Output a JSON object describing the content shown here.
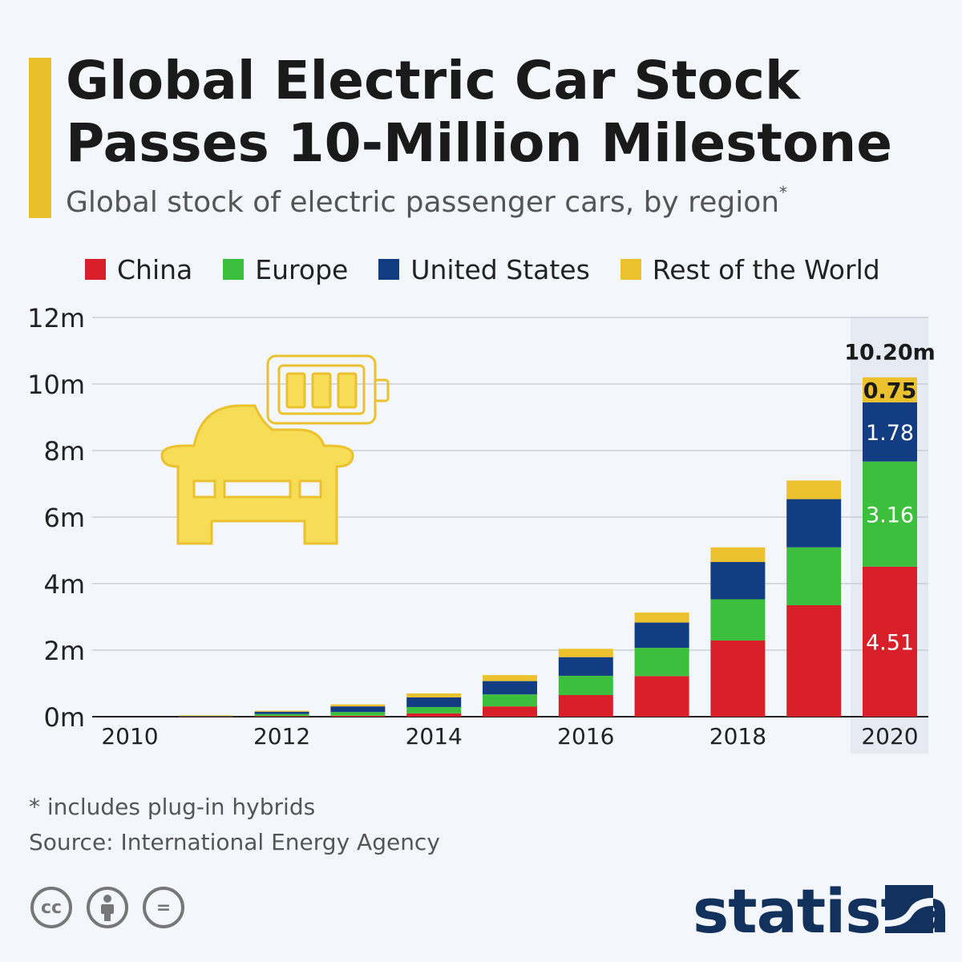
{
  "title": {
    "line1": "Global Electric Car Stock",
    "line2": "Passes 10-Million Milestone"
  },
  "subtitle": "Global stock of electric passenger cars, by region",
  "subtitle_marker": "*",
  "footnote": "* includes plug-in hybrids",
  "source": "Source: International Energy Agency",
  "brand": "statista",
  "license_icons": [
    {
      "name": "cc-icon",
      "symbol": "cc"
    },
    {
      "name": "attribution-icon",
      "symbol": ""
    },
    {
      "name": "no-derivatives-icon",
      "symbol": "="
    }
  ],
  "colors": {
    "accent": "#e8c12a",
    "china": "#d9202a",
    "europe": "#3cbf3c",
    "united_states": "#123d82",
    "rest_of_world": "#ebc12e",
    "highlight_band": "#e6eaf2",
    "brand": "#12325d"
  },
  "chart_data": {
    "type": "bar",
    "stacked": true,
    "categories": [
      "2010",
      "2011",
      "2012",
      "2013",
      "2014",
      "2015",
      "2016",
      "2017",
      "2018",
      "2019",
      "2020"
    ],
    "x_tick_labels": [
      "2010",
      "",
      "2012",
      "",
      "2014",
      "",
      "2016",
      "",
      "2018",
      "",
      "2020"
    ],
    "series": [
      {
        "name": "China",
        "color": "#d9202a",
        "values": [
          0.0,
          0.01,
          0.02,
          0.03,
          0.1,
          0.31,
          0.65,
          1.22,
          2.29,
          3.35,
          4.51
        ]
      },
      {
        "name": "Europe",
        "color": "#3cbf3c",
        "values": [
          0.0,
          0.01,
          0.06,
          0.11,
          0.19,
          0.36,
          0.58,
          0.85,
          1.24,
          1.74,
          3.16
        ]
      },
      {
        "name": "United States",
        "color": "#123d82",
        "values": [
          0.0,
          0.01,
          0.07,
          0.17,
          0.29,
          0.4,
          0.56,
          0.76,
          1.12,
          1.45,
          1.78
        ]
      },
      {
        "name": "Rest of the World",
        "color": "#ebc12e",
        "values": [
          0.0,
          0.01,
          0.03,
          0.06,
          0.12,
          0.18,
          0.25,
          0.3,
          0.44,
          0.56,
          0.75
        ]
      }
    ],
    "data_labels": {
      "category": "2020",
      "values": [
        "4.51",
        "3.16",
        "1.78",
        "0.75"
      ],
      "total": "10.20m"
    },
    "highlight_category": "2020",
    "yticks": [
      "0m",
      "2m",
      "4m",
      "6m",
      "8m",
      "10m",
      "12m"
    ],
    "ylim": [
      0,
      12
    ],
    "grid": true,
    "legend_position": "top"
  }
}
